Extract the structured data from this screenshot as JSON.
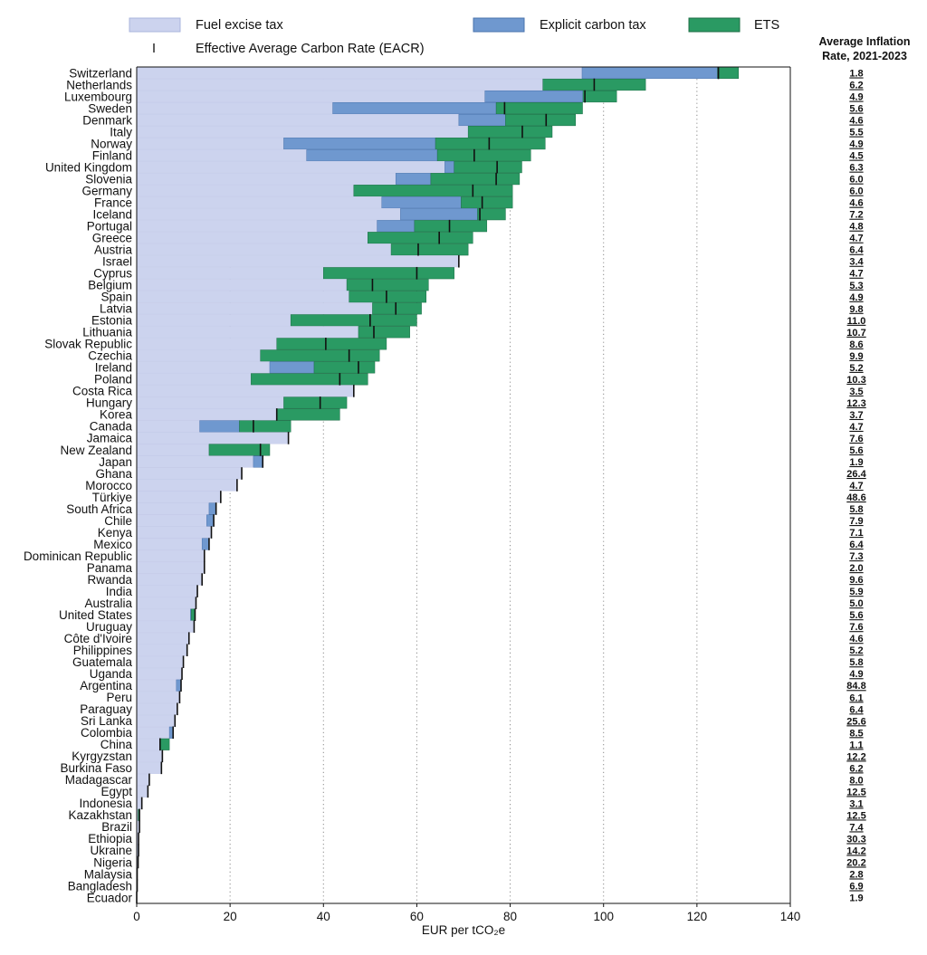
{
  "chart_data": {
    "type": "bar",
    "orientation": "horizontal",
    "stacked": true,
    "xlabel": "EUR per tCO₂e",
    "xlim": [
      0,
      140
    ],
    "xticks": [
      0,
      20,
      40,
      60,
      80,
      100,
      120,
      140
    ],
    "grid": "vertical dotted",
    "legend": {
      "fuel_excise": "Fuel excise tax",
      "carbon_tax": "Explicit carbon tax",
      "ets": "ETS",
      "eacr": "Effective Average Carbon Rate (EACR)",
      "eacr_marker": "I"
    },
    "inflation_header": [
      "Average Inflation",
      "Rate, 2021-2023"
    ],
    "colors": {
      "fuel_excise": "#ccd3ee",
      "carbon_tax": "#6f98cf",
      "ets": "#2a9a63",
      "eacr": "#111111",
      "grid": "#8a8a8a"
    },
    "countries": [
      {
        "name": "Switzerland",
        "fuel": 95.4,
        "carbon": 29.0,
        "ets": 4.5,
        "eacr": 124.6,
        "inflation": "1.8"
      },
      {
        "name": "Netherlands",
        "fuel": 87.0,
        "carbon": 0,
        "ets": 22.0,
        "eacr": 98.0,
        "inflation": "6.2"
      },
      {
        "name": "Luxembourg",
        "fuel": 74.6,
        "carbon": 21.0,
        "ets": 7.2,
        "eacr": 96.0,
        "inflation": "4.9"
      },
      {
        "name": "Sweden",
        "fuel": 42.0,
        "carbon": 35.0,
        "ets": 18.5,
        "eacr": 78.8,
        "inflation": "5.6"
      },
      {
        "name": "Denmark",
        "fuel": 69.0,
        "carbon": 10.0,
        "ets": 15.0,
        "eacr": 87.7,
        "inflation": "4.6"
      },
      {
        "name": "Italy",
        "fuel": 71.0,
        "carbon": 0,
        "ets": 18.0,
        "eacr": 82.6,
        "inflation": "5.5"
      },
      {
        "name": "Norway",
        "fuel": 31.5,
        "carbon": 32.5,
        "ets": 23.5,
        "eacr": 75.5,
        "inflation": "4.9"
      },
      {
        "name": "Finland",
        "fuel": 36.4,
        "carbon": 28.0,
        "ets": 20.0,
        "eacr": 72.3,
        "inflation": "4.5"
      },
      {
        "name": "United Kingdom",
        "fuel": 66.0,
        "carbon": 2.0,
        "ets": 14.5,
        "eacr": 77.2,
        "inflation": "6.3"
      },
      {
        "name": "Slovenia",
        "fuel": 55.5,
        "carbon": 7.5,
        "ets": 19.0,
        "eacr": 77.0,
        "inflation": "6.0"
      },
      {
        "name": "Germany",
        "fuel": 46.5,
        "carbon": 0,
        "ets": 34.0,
        "eacr": 72.0,
        "inflation": "6.0"
      },
      {
        "name": "France",
        "fuel": 52.5,
        "carbon": 17.0,
        "ets": 11.0,
        "eacr": 74.0,
        "inflation": "4.6"
      },
      {
        "name": "Iceland",
        "fuel": 56.5,
        "carbon": 16.5,
        "ets": 6.0,
        "eacr": 73.5,
        "inflation": "7.2"
      },
      {
        "name": "Portugal",
        "fuel": 51.5,
        "carbon": 8.0,
        "ets": 15.5,
        "eacr": 67.0,
        "inflation": "4.8"
      },
      {
        "name": "Greece",
        "fuel": 49.5,
        "carbon": 0,
        "ets": 22.5,
        "eacr": 64.8,
        "inflation": "4.7"
      },
      {
        "name": "Austria",
        "fuel": 54.5,
        "carbon": 0,
        "ets": 16.5,
        "eacr": 60.3,
        "inflation": "6.4"
      },
      {
        "name": "Israel",
        "fuel": 69.0,
        "carbon": 0,
        "ets": 0,
        "eacr": 69.0,
        "inflation": "3.4"
      },
      {
        "name": "Cyprus",
        "fuel": 40.0,
        "carbon": 0,
        "ets": 28.0,
        "eacr": 60.0,
        "inflation": "4.7"
      },
      {
        "name": "Belgium",
        "fuel": 45.0,
        "carbon": 0,
        "ets": 17.5,
        "eacr": 50.5,
        "inflation": "5.3"
      },
      {
        "name": "Spain",
        "fuel": 45.5,
        "carbon": 0,
        "ets": 16.5,
        "eacr": 53.5,
        "inflation": "4.9"
      },
      {
        "name": "Latvia",
        "fuel": 50.5,
        "carbon": 0,
        "ets": 10.5,
        "eacr": 55.5,
        "inflation": "9.8"
      },
      {
        "name": "Estonia",
        "fuel": 33.0,
        "carbon": 0,
        "ets": 27.0,
        "eacr": 50.0,
        "inflation": "11.0"
      },
      {
        "name": "Lithuania",
        "fuel": 47.5,
        "carbon": 0,
        "ets": 11.0,
        "eacr": 50.8,
        "inflation": "10.7"
      },
      {
        "name": "Slovak Republic",
        "fuel": 30.0,
        "carbon": 0,
        "ets": 23.5,
        "eacr": 40.5,
        "inflation": "8.6"
      },
      {
        "name": "Czechia",
        "fuel": 26.5,
        "carbon": 0,
        "ets": 25.5,
        "eacr": 45.5,
        "inflation": "9.9"
      },
      {
        "name": "Ireland",
        "fuel": 28.5,
        "carbon": 9.5,
        "ets": 13.0,
        "eacr": 47.5,
        "inflation": "5.2"
      },
      {
        "name": "Poland",
        "fuel": 24.5,
        "carbon": 0,
        "ets": 25.0,
        "eacr": 43.5,
        "inflation": "10.3"
      },
      {
        "name": "Costa Rica",
        "fuel": 46.5,
        "carbon": 0,
        "ets": 0,
        "eacr": 46.5,
        "inflation": "3.5"
      },
      {
        "name": "Hungary",
        "fuel": 31.5,
        "carbon": 0,
        "ets": 13.5,
        "eacr": 39.3,
        "inflation": "12.3"
      },
      {
        "name": "Korea",
        "fuel": 30.0,
        "carbon": 0,
        "ets": 13.5,
        "eacr": 30.0,
        "inflation": "3.7"
      },
      {
        "name": "Canada",
        "fuel": 13.5,
        "carbon": 8.5,
        "ets": 11.0,
        "eacr": 25.0,
        "inflation": "4.7"
      },
      {
        "name": "Jamaica",
        "fuel": 32.5,
        "carbon": 0,
        "ets": 0,
        "eacr": 32.5,
        "inflation": "7.6"
      },
      {
        "name": "New Zealand",
        "fuel": 15.5,
        "carbon": 0,
        "ets": 13.0,
        "eacr": 26.5,
        "inflation": "5.6"
      },
      {
        "name": "Japan",
        "fuel": 25.0,
        "carbon": 2.0,
        "ets": 0,
        "eacr": 27.0,
        "inflation": "1.9"
      },
      {
        "name": "Ghana",
        "fuel": 22.5,
        "carbon": 0,
        "ets": 0,
        "eacr": 22.5,
        "inflation": "26.4"
      },
      {
        "name": "Morocco",
        "fuel": 21.5,
        "carbon": 0,
        "ets": 0,
        "eacr": 21.5,
        "inflation": "4.7"
      },
      {
        "name": "Türkiye",
        "fuel": 18.0,
        "carbon": 0,
        "ets": 0,
        "eacr": 18.0,
        "inflation": "48.6"
      },
      {
        "name": "South Africa",
        "fuel": 15.5,
        "carbon": 1.5,
        "ets": 0,
        "eacr": 17.0,
        "inflation": "5.8"
      },
      {
        "name": "Chile",
        "fuel": 15.0,
        "carbon": 1.5,
        "ets": 0,
        "eacr": 16.5,
        "inflation": "7.9"
      },
      {
        "name": "Kenya",
        "fuel": 16.0,
        "carbon": 0,
        "ets": 0,
        "eacr": 16.0,
        "inflation": "7.1"
      },
      {
        "name": "Mexico",
        "fuel": 14.0,
        "carbon": 1.5,
        "ets": 0,
        "eacr": 15.5,
        "inflation": "6.4"
      },
      {
        "name": "Dominican Republic",
        "fuel": 14.5,
        "carbon": 0,
        "ets": 0,
        "eacr": 14.5,
        "inflation": "7.3"
      },
      {
        "name": "Panama",
        "fuel": 14.5,
        "carbon": 0,
        "ets": 0,
        "eacr": 14.5,
        "inflation": "2.0"
      },
      {
        "name": "Rwanda",
        "fuel": 14.0,
        "carbon": 0,
        "ets": 0,
        "eacr": 14.0,
        "inflation": "9.6"
      },
      {
        "name": "India",
        "fuel": 13.0,
        "carbon": 0,
        "ets": 0,
        "eacr": 13.0,
        "inflation": "5.9"
      },
      {
        "name": "Australia",
        "fuel": 12.7,
        "carbon": 0,
        "ets": 0,
        "eacr": 12.7,
        "inflation": "5.0"
      },
      {
        "name": "United States",
        "fuel": 11.5,
        "carbon": 0.2,
        "ets": 0.8,
        "eacr": 12.5,
        "inflation": "5.6"
      },
      {
        "name": "Uruguay",
        "fuel": 12.3,
        "carbon": 0,
        "ets": 0,
        "eacr": 12.3,
        "inflation": "7.6"
      },
      {
        "name": "Côte d'Ivoire",
        "fuel": 11.2,
        "carbon": 0,
        "ets": 0,
        "eacr": 11.2,
        "inflation": "4.6"
      },
      {
        "name": "Philippines",
        "fuel": 10.8,
        "carbon": 0,
        "ets": 0,
        "eacr": 10.8,
        "inflation": "5.2"
      },
      {
        "name": "Guatemala",
        "fuel": 10.0,
        "carbon": 0,
        "ets": 0,
        "eacr": 10.0,
        "inflation": "5.8"
      },
      {
        "name": "Uganda",
        "fuel": 9.7,
        "carbon": 0,
        "ets": 0,
        "eacr": 9.7,
        "inflation": "4.9"
      },
      {
        "name": "Argentina",
        "fuel": 8.5,
        "carbon": 1.0,
        "ets": 0,
        "eacr": 9.5,
        "inflation": "84.8"
      },
      {
        "name": "Peru",
        "fuel": 9.2,
        "carbon": 0,
        "ets": 0,
        "eacr": 9.2,
        "inflation": "6.1"
      },
      {
        "name": "Paraguay",
        "fuel": 8.7,
        "carbon": 0,
        "ets": 0,
        "eacr": 8.7,
        "inflation": "6.4"
      },
      {
        "name": "Sri Lanka",
        "fuel": 8.2,
        "carbon": 0,
        "ets": 0,
        "eacr": 8.2,
        "inflation": "25.6"
      },
      {
        "name": "Colombia",
        "fuel": 7.0,
        "carbon": 0.8,
        "ets": 0,
        "eacr": 7.8,
        "inflation": "8.5"
      },
      {
        "name": "China",
        "fuel": 5.0,
        "carbon": 0,
        "ets": 2.0,
        "eacr": 5.0,
        "inflation": "1.1"
      },
      {
        "name": "Kyrgyzstan",
        "fuel": 5.5,
        "carbon": 0,
        "ets": 0,
        "eacr": 5.5,
        "inflation": "12.2"
      },
      {
        "name": "Burkina Faso",
        "fuel": 5.3,
        "carbon": 0,
        "ets": 0,
        "eacr": 5.3,
        "inflation": "6.2"
      },
      {
        "name": "Madagascar",
        "fuel": 2.7,
        "carbon": 0,
        "ets": 0,
        "eacr": 2.7,
        "inflation": "8.0"
      },
      {
        "name": "Egypt",
        "fuel": 2.4,
        "carbon": 0,
        "ets": 0,
        "eacr": 2.4,
        "inflation": "12.5"
      },
      {
        "name": "Indonesia",
        "fuel": 1.1,
        "carbon": 0,
        "ets": 0,
        "eacr": 1.1,
        "inflation": "3.1"
      },
      {
        "name": "Kazakhstan",
        "fuel": 0.3,
        "carbon": 0,
        "ets": 0.3,
        "eacr": 0.6,
        "inflation": "12.5"
      },
      {
        "name": "Brazil",
        "fuel": 0.6,
        "carbon": 0,
        "ets": 0,
        "eacr": 0.6,
        "inflation": "7.4"
      },
      {
        "name": "Ethiopia",
        "fuel": 0.4,
        "carbon": 0,
        "ets": 0,
        "eacr": 0.4,
        "inflation": "30.3"
      },
      {
        "name": "Ukraine",
        "fuel": 0.3,
        "carbon": 0.1,
        "ets": 0,
        "eacr": 0.4,
        "inflation": "14.2"
      },
      {
        "name": "Nigeria",
        "fuel": 0.3,
        "carbon": 0,
        "ets": 0,
        "eacr": 0.3,
        "inflation": "20.2"
      },
      {
        "name": "Malaysia",
        "fuel": 0.1,
        "carbon": 0,
        "ets": 0,
        "eacr": 0.1,
        "inflation": "2.8"
      },
      {
        "name": "Bangladesh",
        "fuel": 0.1,
        "carbon": 0,
        "ets": 0,
        "eacr": 0.1,
        "inflation": "6.9"
      },
      {
        "name": "Ecuador",
        "fuel": 0.0,
        "carbon": 0,
        "ets": 0,
        "eacr": 0.0,
        "inflation": "1.9"
      }
    ]
  }
}
